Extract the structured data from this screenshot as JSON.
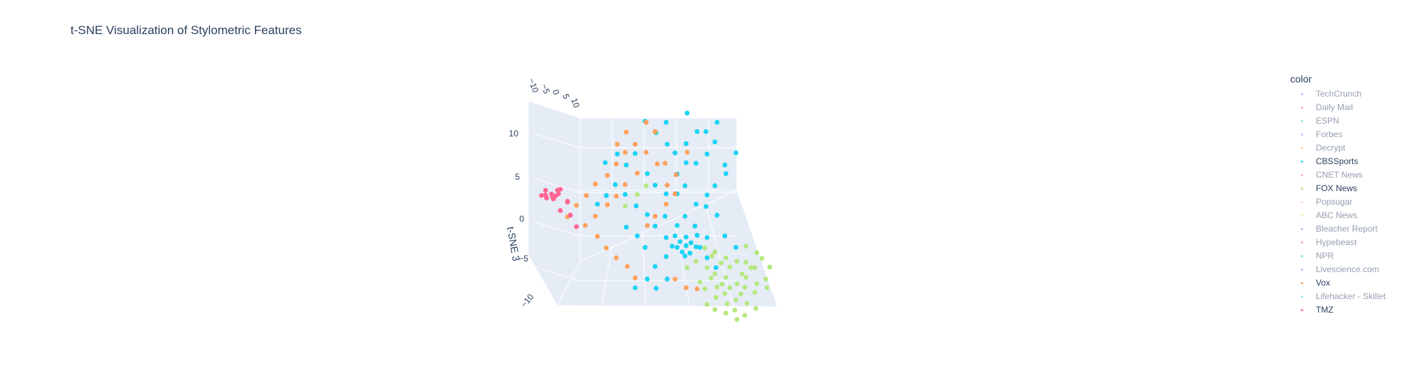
{
  "title": "t-SNE Visualization of Stylometric Features",
  "chart_data": {
    "type": "scatter",
    "title": "t-SNE Visualization of Stylometric Features",
    "zlabel": "t-SNE 3",
    "z_ticks": [
      "10",
      "5",
      "0",
      "−5",
      "−10"
    ],
    "y_ticks": [
      "−10",
      "−5",
      "0",
      "5",
      "10"
    ],
    "legend_title": "color",
    "legend_position": "right",
    "series": [
      {
        "name": "TechCrunch",
        "color": "#636efa",
        "visible": false,
        "points": []
      },
      {
        "name": "Daily Mail",
        "color": "#EF553B",
        "visible": false,
        "points": []
      },
      {
        "name": "ESPN",
        "color": "#00cc96",
        "visible": false,
        "points": []
      },
      {
        "name": "Forbes",
        "color": "#ab63fa",
        "visible": false,
        "points": []
      },
      {
        "name": "Decrypt",
        "color": "#FFA15A",
        "visible": false,
        "points": []
      },
      {
        "name": "CBSSports",
        "color": "#19d3f3",
        "visible": true,
        "points": [
          [
            -4,
            9
          ],
          [
            -3,
            8
          ],
          [
            -2,
            7
          ],
          [
            -1,
            6
          ],
          [
            0,
            7
          ],
          [
            1,
            8
          ],
          [
            -5,
            6
          ],
          [
            -6,
            5
          ],
          [
            -4,
            4
          ],
          [
            -3,
            3
          ],
          [
            -2,
            2
          ],
          [
            -1,
            4
          ],
          [
            0,
            3
          ],
          [
            1,
            5
          ],
          [
            2,
            6
          ],
          [
            3,
            7
          ],
          [
            -2,
            9
          ],
          [
            0,
            10
          ],
          [
            -6,
            2
          ],
          [
            -5,
            1
          ],
          [
            -4,
            0
          ],
          [
            -3,
            -1
          ],
          [
            -2,
            -2
          ],
          [
            -1,
            -1
          ],
          [
            0,
            0
          ],
          [
            1,
            1
          ],
          [
            2,
            2
          ],
          [
            3,
            3
          ],
          [
            4,
            4
          ],
          [
            -1,
            -3
          ],
          [
            0,
            -4
          ],
          [
            1,
            -3
          ],
          [
            2,
            -2
          ],
          [
            -1,
            -2
          ],
          [
            0,
            -2
          ],
          [
            1,
            -2
          ],
          [
            -0.5,
            -2.5
          ],
          [
            0.5,
            -2.5
          ],
          [
            -1.5,
            -3
          ],
          [
            1.5,
            -3
          ],
          [
            0,
            -3
          ],
          [
            -0.5,
            -3.5
          ],
          [
            0.5,
            -3.5
          ],
          [
            -2,
            -4
          ],
          [
            2,
            -4
          ],
          [
            -3,
            -5
          ],
          [
            3,
            -5
          ],
          [
            -4,
            -6
          ],
          [
            -5,
            -7
          ],
          [
            -8,
            2
          ],
          [
            -9,
            1
          ],
          [
            -7,
            3
          ],
          [
            -6,
            -1
          ],
          [
            -5,
            -2
          ],
          [
            -4,
            -3
          ],
          [
            2,
            8
          ],
          [
            3,
            9
          ],
          [
            4,
            5
          ],
          [
            5,
            6
          ],
          [
            -7,
            6
          ],
          [
            -8,
            5
          ],
          [
            -3,
            -7
          ],
          [
            -2,
            -6
          ],
          [
            4,
            -2
          ],
          [
            5,
            -3
          ],
          [
            -1,
            2
          ],
          [
            1,
            -1
          ],
          [
            2,
            1
          ],
          [
            3,
            0
          ],
          [
            -2,
            0
          ],
          [
            0,
            5
          ]
        ]
      },
      {
        "name": "CNET News",
        "color": "#FF6692",
        "visible": false,
        "points": []
      },
      {
        "name": "FOX News",
        "color": "#B6E880",
        "visible": true,
        "points": [
          [
            2,
            -5
          ],
          [
            3,
            -5.5
          ],
          [
            4,
            -6
          ],
          [
            5,
            -6.5
          ],
          [
            6,
            -7
          ],
          [
            2.5,
            -6
          ],
          [
            3.5,
            -6.5
          ],
          [
            4.5,
            -7
          ],
          [
            5.5,
            -7.5
          ],
          [
            3,
            -7
          ],
          [
            4,
            -7.5
          ],
          [
            5,
            -8
          ],
          [
            6,
            -8.5
          ],
          [
            2,
            -7
          ],
          [
            3,
            -8
          ],
          [
            4,
            -8.5
          ],
          [
            5,
            -9
          ],
          [
            6,
            -6
          ],
          [
            7,
            -6.5
          ],
          [
            7,
            -7.5
          ],
          [
            6.5,
            -5
          ],
          [
            5.5,
            -5.5
          ],
          [
            4.5,
            -5
          ],
          [
            3.5,
            -4.5
          ],
          [
            2.5,
            -4
          ],
          [
            7,
            -5
          ],
          [
            8,
            -6
          ],
          [
            8,
            -7
          ],
          [
            3,
            -9
          ],
          [
            4,
            -9.5
          ],
          [
            5,
            -10
          ],
          [
            6,
            -9.5
          ],
          [
            7,
            -9
          ],
          [
            2,
            -8.5
          ],
          [
            1.5,
            -6.5
          ],
          [
            6,
            -4.5
          ],
          [
            7.5,
            -4
          ],
          [
            8.5,
            -5
          ],
          [
            4,
            -4
          ],
          [
            5,
            -4.5
          ],
          [
            3,
            -3.5
          ],
          [
            -4,
            3
          ],
          [
            -5,
            2
          ],
          [
            -6,
            1
          ],
          [
            1,
            -4.5
          ],
          [
            0,
            -5
          ],
          [
            2,
            -3
          ],
          [
            6,
            -3
          ],
          [
            7,
            -3.5
          ]
        ]
      },
      {
        "name": "Popsugar",
        "color": "#FF97FF",
        "visible": false,
        "points": []
      },
      {
        "name": "ABC News",
        "color": "#FECB52",
        "visible": false,
        "points": []
      },
      {
        "name": "Bleacher Report",
        "color": "#636efa",
        "visible": false,
        "points": []
      },
      {
        "name": "Hypebeast",
        "color": "#EF553B",
        "visible": false,
        "points": []
      },
      {
        "name": "NPR",
        "color": "#00cc96",
        "visible": false,
        "points": []
      },
      {
        "name": "Livescience.com",
        "color": "#ab63fa",
        "visible": false,
        "points": []
      },
      {
        "name": "Vox",
        "color": "#FFA15A",
        "visible": true,
        "points": [
          [
            -6,
            6
          ],
          [
            -7,
            5
          ],
          [
            -8,
            4
          ],
          [
            -9,
            3
          ],
          [
            -10,
            2
          ],
          [
            -5,
            4
          ],
          [
            -6,
            3
          ],
          [
            -7,
            2
          ],
          [
            -8,
            1
          ],
          [
            -9,
            0
          ],
          [
            -4,
            6
          ],
          [
            -3,
            5
          ],
          [
            -5,
            7
          ],
          [
            -6,
            8
          ],
          [
            -2,
            3
          ],
          [
            -1,
            2
          ],
          [
            -11,
            1
          ],
          [
            -12,
            0
          ],
          [
            -10,
            -1
          ],
          [
            -7,
            -4
          ],
          [
            -6,
            -5
          ],
          [
            -5,
            -6
          ],
          [
            -8,
            -3
          ],
          [
            -4,
            -1
          ],
          [
            -3,
            0
          ],
          [
            -2,
            1
          ],
          [
            -9,
            -2
          ],
          [
            -1,
            -6
          ],
          [
            0,
            -7
          ],
          [
            1,
            -7
          ],
          [
            -3,
            8
          ],
          [
            -4,
            9
          ],
          [
            -7,
            7
          ],
          [
            -2,
            5
          ],
          [
            -1,
            4
          ],
          [
            0,
            6
          ]
        ]
      },
      {
        "name": "Lifehacker - Skillet",
        "color": "#19d3f3",
        "visible": false,
        "points": []
      },
      {
        "name": "TMZ",
        "color": "#FF6692",
        "visible": true,
        "points": [
          [
            -14,
            2
          ],
          [
            -13.5,
            2.2
          ],
          [
            -13,
            2.4
          ],
          [
            -12.5,
            2.6
          ],
          [
            -14,
            1.6
          ],
          [
            -13.5,
            1.8
          ],
          [
            -13,
            2
          ],
          [
            -14.5,
            1.9
          ],
          [
            -14.2,
            2.5
          ],
          [
            -13.2,
            1.5
          ],
          [
            -12.8,
            2.1
          ],
          [
            -12,
            1.5
          ],
          [
            -11.5,
            0
          ],
          [
            -11,
            -1
          ],
          [
            -12,
            1.2
          ],
          [
            -12.5,
            0.5
          ]
        ]
      }
    ]
  }
}
